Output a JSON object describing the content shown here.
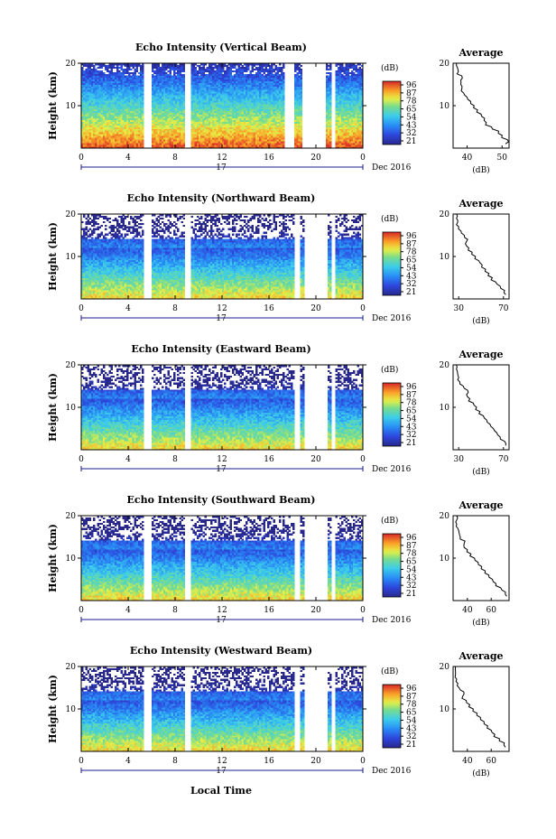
{
  "figure": {
    "x_axis_label": "Local Time",
    "date_label": "Dec 2016",
    "day_label": "17",
    "y_axis_label": "Height (km)",
    "colorbar_unit": "(dB)",
    "average_title": "Average",
    "average_unit": "(dB)"
  },
  "chart_data": [
    {
      "type": "heatmap",
      "title": "Echo Intensity (Vertical Beam)",
      "xlabel": "Local Time",
      "ylabel": "Height (km)",
      "xlim": [
        0,
        24
      ],
      "ylim": [
        0,
        20
      ],
      "xticks": [
        "0",
        "4",
        "8",
        "12",
        "16",
        "20",
        "0"
      ],
      "yticks": [
        "10",
        "20"
      ],
      "colorbar_ticks": [
        "96",
        "87",
        "78",
        "65",
        "54",
        "43",
        "32",
        "21"
      ],
      "data_gaps_hours": [
        [
          5.4,
          6.0
        ],
        [
          8.8,
          9.3
        ],
        [
          17.4,
          18.1
        ],
        [
          18.8,
          20.9
        ],
        [
          21.4,
          21.7
        ]
      ],
      "average_profile": {
        "xlim": [
          36,
          52
        ],
        "xticks": [
          "40",
          "50"
        ],
        "height_km": [
          1.0,
          2.0,
          3.0,
          4.0,
          5.0,
          6.0,
          7.0,
          8.0,
          9.0,
          10.0,
          11.0,
          12.0,
          13.0,
          14.0,
          15.0,
          16.0,
          17.0,
          18.0,
          19.0,
          20.0
        ],
        "value_db": [
          51,
          51.5,
          50,
          49,
          47,
          45.5,
          45,
          44,
          43,
          42,
          41,
          40,
          39,
          38.5,
          38.2,
          38.2,
          38.5,
          37.5,
          37.2,
          37
        ]
      }
    },
    {
      "type": "heatmap",
      "title": "Echo Intensity (Northward Beam)",
      "xlabel": "Local Time",
      "ylabel": "Height (km)",
      "xlim": [
        0,
        24
      ],
      "ylim": [
        0,
        20
      ],
      "xticks": [
        "0",
        "4",
        "8",
        "12",
        "16",
        "20",
        "0"
      ],
      "yticks": [
        "10",
        "20"
      ],
      "colorbar_ticks": [
        "96",
        "87",
        "78",
        "65",
        "54",
        "43",
        "32",
        "21"
      ],
      "data_gaps_hours": [
        [
          5.4,
          6.0
        ],
        [
          8.8,
          9.3
        ],
        [
          18.2,
          18.6
        ],
        [
          19.0,
          21.0
        ],
        [
          21.3,
          21.6
        ]
      ],
      "average_profile": {
        "xlim": [
          25,
          75
        ],
        "xticks": [
          "30",
          "70"
        ],
        "height_km": [
          1.0,
          2.0,
          3.0,
          4.0,
          5.0,
          6.0,
          7.0,
          8.0,
          9.0,
          10.0,
          11.0,
          12.0,
          13.0,
          14.0,
          15.0,
          16.0,
          17.0,
          18.0,
          19.0,
          20.0
        ],
        "value_db": [
          72,
          71,
          67,
          63,
          60,
          57,
          54,
          51,
          48,
          45,
          42,
          39,
          36,
          38,
          35,
          32,
          30,
          29,
          28,
          28
        ]
      }
    },
    {
      "type": "heatmap",
      "title": "Echo Intensity (Eastward Beam)",
      "xlabel": "Local Time",
      "ylabel": "Height (km)",
      "xlim": [
        0,
        24
      ],
      "ylim": [
        0,
        20
      ],
      "xticks": [
        "0",
        "4",
        "8",
        "12",
        "16",
        "20",
        "0"
      ],
      "yticks": [
        "10",
        "20"
      ],
      "colorbar_ticks": [
        "96",
        "87",
        "78",
        "65",
        "54",
        "43",
        "32",
        "21"
      ],
      "data_gaps_hours": [
        [
          5.4,
          6.0
        ],
        [
          8.8,
          9.3
        ],
        [
          18.2,
          18.6
        ],
        [
          19.0,
          21.0
        ],
        [
          21.3,
          21.6
        ]
      ],
      "average_profile": {
        "xlim": [
          25,
          75
        ],
        "xticks": [
          "30",
          "70"
        ],
        "height_km": [
          1.0,
          2.0,
          3.0,
          4.0,
          5.0,
          6.0,
          7.0,
          8.0,
          9.0,
          10.0,
          11.0,
          12.0,
          13.0,
          14.0,
          15.0,
          16.0,
          17.0,
          18.0,
          19.0,
          20.0
        ],
        "value_db": [
          72,
          71,
          67,
          64,
          61,
          58,
          55,
          52,
          49,
          46,
          43,
          40,
          37,
          38,
          34,
          31,
          30,
          29,
          28,
          28
        ]
      }
    },
    {
      "type": "heatmap",
      "title": "Echo Intensity (Southward Beam)",
      "xlabel": "Local Time",
      "ylabel": "Height (km)",
      "xlim": [
        0,
        24
      ],
      "ylim": [
        0,
        20
      ],
      "xticks": [
        "0",
        "4",
        "8",
        "12",
        "16",
        "20",
        "0"
      ],
      "yticks": [
        "10",
        "20"
      ],
      "colorbar_ticks": [
        "96",
        "87",
        "78",
        "65",
        "54",
        "43",
        "32",
        "21"
      ],
      "data_gaps_hours": [
        [
          5.4,
          6.0
        ],
        [
          8.8,
          9.3
        ],
        [
          18.2,
          18.6
        ],
        [
          19.0,
          21.0
        ],
        [
          21.3,
          21.6
        ]
      ],
      "average_profile": {
        "xlim": [
          28,
          75
        ],
        "xticks": [
          "40",
          "60"
        ],
        "height_km": [
          1.0,
          2.0,
          3.0,
          4.0,
          5.0,
          6.0,
          7.0,
          8.0,
          9.0,
          10.0,
          11.0,
          12.0,
          13.0,
          14.0,
          15.0,
          16.0,
          17.0,
          18.0,
          19.0,
          20.0
        ],
        "value_db": [
          73,
          72,
          68,
          64,
          61,
          58,
          55,
          52,
          49,
          46,
          43,
          40,
          37,
          38,
          34,
          33,
          32,
          31,
          31,
          31
        ]
      }
    },
    {
      "type": "heatmap",
      "title": "Echo Intensity (Westward Beam)",
      "xlabel": "Local Time",
      "ylabel": "Height (km)",
      "xlim": [
        0,
        24
      ],
      "ylim": [
        0,
        20
      ],
      "xticks": [
        "0",
        "4",
        "8",
        "12",
        "16",
        "20",
        "0"
      ],
      "yticks": [
        "10",
        "20"
      ],
      "colorbar_ticks": [
        "96",
        "87",
        "78",
        "65",
        "54",
        "43",
        "32",
        "21"
      ],
      "data_gaps_hours": [
        [
          5.4,
          6.0
        ],
        [
          8.8,
          9.3
        ],
        [
          18.2,
          18.6
        ],
        [
          19.0,
          21.0
        ],
        [
          21.3,
          21.6
        ]
      ],
      "average_profile": {
        "xlim": [
          28,
          75
        ],
        "xticks": [
          "40",
          "60"
        ],
        "height_km": [
          1.0,
          2.0,
          3.0,
          4.0,
          5.0,
          6.0,
          7.0,
          8.0,
          9.0,
          10.0,
          11.0,
          12.0,
          13.0,
          14.0,
          15.0,
          16.0,
          17.0,
          18.0,
          19.0,
          20.0
        ],
        "value_db": [
          72,
          71,
          67,
          63,
          60,
          57,
          54,
          51,
          48,
          45,
          42,
          39,
          36,
          37,
          33,
          32,
          31,
          30,
          30,
          30
        ]
      }
    }
  ]
}
